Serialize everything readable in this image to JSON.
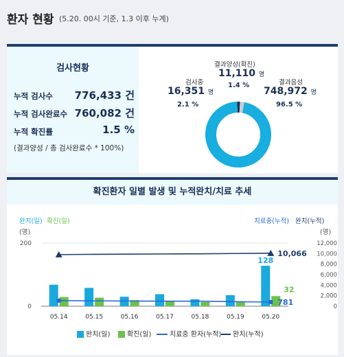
{
  "header": {
    "title": "환자 현황",
    "subtitle": "(5.20. 00시 기준, 1.3 이후 누계)"
  },
  "test_status": {
    "title": "검사현황",
    "rows": [
      {
        "label": "누적 검사수",
        "value": "776,433 건"
      },
      {
        "label": "누적 검사완료수",
        "value": "760,082 건"
      },
      {
        "label": "누적 확진률",
        "value": "1.5 %"
      }
    ],
    "note": "(결과양성 / 총 검사완료수 * 100%)"
  },
  "donut": {
    "positive": {
      "label": "결과양성(확진)",
      "value": "11,110",
      "unit": "명",
      "pct": "1.4 %",
      "num": 11110,
      "color": "#1a2f55"
    },
    "testing": {
      "label": "검사중",
      "value": "16,351",
      "unit": "명",
      "pct": "2.1 %",
      "num": 16351,
      "color": "#c7ccd3"
    },
    "negative": {
      "label": "결과음성",
      "value": "748,972",
      "unit": "명",
      "pct": "96.5 %",
      "num": 748972,
      "color": "#18aee0"
    }
  },
  "trend": {
    "title": "확진환자 일별 발생 및 누적완치/치료 추세"
  },
  "chart_data": {
    "type": "bar",
    "categories": [
      "05.14",
      "05.15",
      "05.16",
      "05.17",
      "05.18",
      "05.19",
      "05.20"
    ],
    "left_axis": {
      "label_a": "완치(일)",
      "label_b": "확진(일)",
      "unit": "(명)",
      "ticks": [
        "200",
        "0"
      ],
      "ylim": [
        0,
        200
      ]
    },
    "right_axis": {
      "label_a": "치료중(누적)",
      "label_b": "완치(누적)",
      "unit": "(명)",
      "ticks": [
        "12,000",
        "10,000",
        "8,000",
        "6,000",
        "4,000",
        "2,000",
        "0"
      ],
      "ylim": [
        0,
        12000
      ]
    },
    "series": [
      {
        "name": "완치(일)",
        "kind": "bar",
        "axis": "left",
        "color": "#1aa9dd",
        "values": [
          68,
          58,
          30,
          38,
          22,
          35,
          128
        ]
      },
      {
        "name": "확진(일)",
        "kind": "bar",
        "axis": "left",
        "color": "#6cc24a",
        "values": [
          29,
          27,
          19,
          15,
          13,
          13,
          32
        ]
      },
      {
        "name": "치료중 환자(누적)",
        "kind": "line",
        "axis": "right",
        "color": "#2b68d6",
        "values": [
          1060,
          1010,
          990,
          960,
          950,
          850,
          781
        ]
      },
      {
        "name": "완치(누적)",
        "kind": "line",
        "axis": "right",
        "color": "#1f3d6b",
        "values": [
          9800,
          9860,
          9890,
          9930,
          9960,
          10010,
          10066
        ]
      }
    ],
    "annotations": {
      "heal_last": "128",
      "confirm_last": "32",
      "treat_last": "781",
      "cum_last": "10,066"
    }
  },
  "legend": [
    "완치(일)",
    "확진(일)",
    "치료중 환자(누적)",
    "완치(누적)"
  ]
}
